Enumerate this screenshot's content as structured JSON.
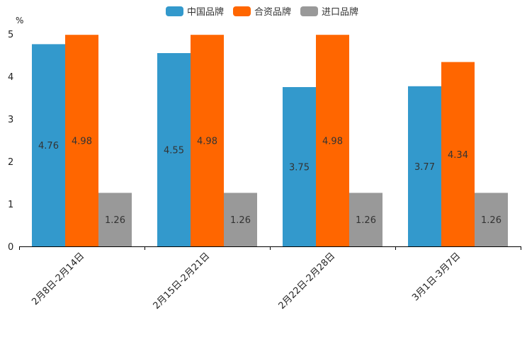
{
  "chart_data": {
    "type": "bar",
    "title": "",
    "xlabel": "",
    "ylabel": "%",
    "ylim": [
      0,
      5
    ],
    "yticks": [
      0,
      1,
      2,
      3,
      4,
      5
    ],
    "grid": false,
    "legend_position": "top-center",
    "categories": [
      "2月8日-2月14日",
      "2月15日-2月21日",
      "2月22日-2月28日",
      "3月1日-3月7日"
    ],
    "series": [
      {
        "name": "中国品牌",
        "color": "#3399CC",
        "values": [
          4.76,
          4.55,
          3.75,
          3.77
        ]
      },
      {
        "name": "合资品牌",
        "color": "#FF6600",
        "values": [
          4.98,
          4.98,
          4.98,
          4.34
        ]
      },
      {
        "name": "进口品牌",
        "color": "#999999",
        "values": [
          1.26,
          1.26,
          1.26,
          1.26
        ]
      }
    ],
    "data_labels": [
      [
        "4.76",
        "4.55",
        "3.75",
        "3.77"
      ],
      [
        "4.98",
        "4.98",
        "4.98",
        "4.34"
      ],
      [
        "1.26",
        "1.26",
        "1.26",
        "1.26"
      ]
    ]
  }
}
